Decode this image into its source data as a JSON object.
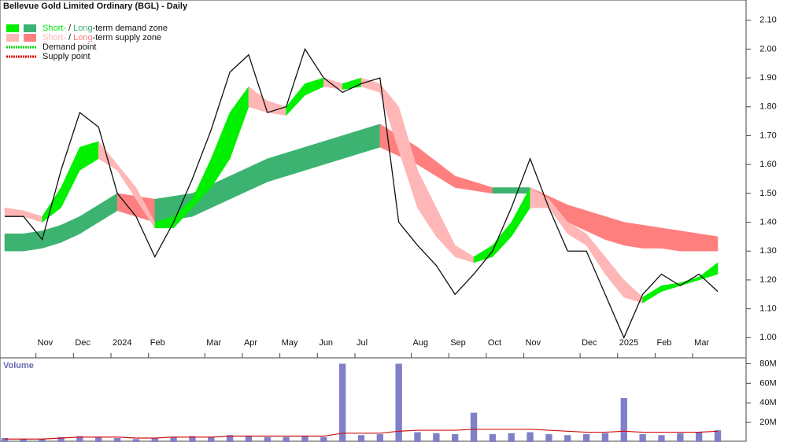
{
  "chart_data": {
    "type": "band-price",
    "title": "Bellevue Gold Limited Ordinary (BGL) - Daily",
    "legend": [
      {
        "parts": [
          "Short-",
          " / ",
          "Long",
          "-term demand zone"
        ],
        "colors": [
          "#00f000",
          "#3cb371"
        ]
      },
      {
        "parts": [
          "Short-",
          " / ",
          "Long",
          "-term supply zone"
        ],
        "colors": [
          "#ffb6b6",
          "#ff7f7f"
        ]
      },
      {
        "parts": [
          "Demand point"
        ],
        "colors": [
          "#00dd00"
        ]
      },
      {
        "parts": [
          "Supply point"
        ],
        "colors": [
          "#dd0000"
        ]
      }
    ],
    "categories": [
      null,
      null,
      "Nov",
      null,
      "Dec",
      null,
      "2024",
      null,
      "Feb",
      null,
      null,
      "Mar",
      null,
      "Apr",
      null,
      "May",
      null,
      "Jun",
      null,
      "Jul",
      null,
      null,
      "Aug",
      null,
      "Sep",
      null,
      "Oct",
      null,
      "Nov",
      null,
      null,
      "Dec",
      null,
      "2025",
      null,
      "Feb",
      null,
      "Mar",
      null
    ],
    "close": [
      1.42,
      1.42,
      1.34,
      1.58,
      1.78,
      1.73,
      1.5,
      1.42,
      1.28,
      1.4,
      1.55,
      1.72,
      1.92,
      1.98,
      1.78,
      1.8,
      2.0,
      1.9,
      1.85,
      1.88,
      1.9,
      1.4,
      1.32,
      1.25,
      1.15,
      1.22,
      1.3,
      1.45,
      1.62,
      1.45,
      1.3,
      1.3,
      1.15,
      1.0,
      1.15,
      1.22,
      1.18,
      1.22,
      1.16
    ],
    "short_zone": {
      "upper": [
        1.45,
        1.44,
        1.42,
        1.52,
        1.66,
        1.68,
        1.6,
        1.52,
        1.4,
        1.42,
        1.48,
        1.62,
        1.78,
        1.87,
        1.82,
        1.8,
        1.88,
        1.9,
        1.88,
        1.9,
        1.88,
        1.8,
        1.58,
        1.45,
        1.32,
        1.28,
        1.32,
        1.4,
        1.52,
        1.48,
        1.4,
        1.36,
        1.28,
        1.2,
        1.14,
        1.18,
        1.19,
        1.21,
        1.26
      ],
      "lower": [
        1.42,
        1.42,
        1.4,
        1.45,
        1.58,
        1.62,
        1.58,
        1.48,
        1.38,
        1.38,
        1.45,
        1.52,
        1.62,
        1.8,
        1.78,
        1.77,
        1.84,
        1.87,
        1.86,
        1.87,
        1.85,
        1.65,
        1.45,
        1.35,
        1.28,
        1.26,
        1.28,
        1.35,
        1.45,
        1.45,
        1.36,
        1.32,
        1.22,
        1.14,
        1.12,
        1.16,
        1.18,
        1.2,
        1.22
      ]
    },
    "long_zone": {
      "upper": [
        1.36,
        1.36,
        1.37,
        1.39,
        1.42,
        1.46,
        1.5,
        1.49,
        1.48,
        1.49,
        1.5,
        1.53,
        1.56,
        1.59,
        1.62,
        1.64,
        1.66,
        1.68,
        1.7,
        1.72,
        1.74,
        1.7,
        1.66,
        1.61,
        1.56,
        1.54,
        1.52,
        1.52,
        1.52,
        1.49,
        1.46,
        1.44,
        1.42,
        1.4,
        1.39,
        1.38,
        1.37,
        1.36,
        1.35
      ],
      "lower": [
        1.3,
        1.3,
        1.31,
        1.33,
        1.36,
        1.4,
        1.44,
        1.42,
        1.4,
        1.41,
        1.42,
        1.45,
        1.48,
        1.51,
        1.54,
        1.56,
        1.58,
        1.6,
        1.62,
        1.64,
        1.66,
        1.63,
        1.6,
        1.56,
        1.52,
        1.51,
        1.5,
        1.5,
        1.5,
        1.45,
        1.4,
        1.37,
        1.34,
        1.32,
        1.31,
        1.31,
        1.3,
        1.3,
        1.3
      ]
    },
    "ylim": [
      0.93,
      2.17
    ],
    "yticks": [
      {
        "value": 1.0,
        "label": "1.00"
      },
      {
        "value": 1.1,
        "label": "1.10"
      },
      {
        "value": 1.2,
        "label": "1.20"
      },
      {
        "value": 1.3,
        "label": "1.30"
      },
      {
        "value": 1.4,
        "label": "1.40"
      },
      {
        "value": 1.5,
        "label": "1.50"
      },
      {
        "value": 1.6,
        "label": "1.60"
      },
      {
        "value": 1.7,
        "label": "1.70"
      },
      {
        "value": 1.8,
        "label": "1.80"
      },
      {
        "value": 1.9,
        "label": "1.90"
      },
      {
        "value": 2.0,
        "label": "2.00"
      },
      {
        "value": 2.1,
        "label": "2.10"
      }
    ],
    "volume": {
      "title": "Volume",
      "color": "#8080c8",
      "avg_color": "#d01010",
      "values": [
        4,
        3,
        3,
        5,
        6,
        5,
        4,
        3,
        4,
        5,
        6,
        5,
        7,
        6,
        5,
        5,
        6,
        5,
        80,
        7,
        8,
        80,
        10,
        9,
        8,
        30,
        8,
        9,
        10,
        8,
        7,
        8,
        9,
        45,
        8,
        7,
        9,
        10,
        12
      ],
      "avg": [
        3,
        3,
        3,
        4,
        5,
        5,
        5,
        4,
        4,
        5,
        5,
        5,
        6,
        6,
        6,
        6,
        6,
        6,
        9,
        9,
        9,
        11,
        12,
        12,
        12,
        13,
        13,
        13,
        13,
        12,
        11,
        10,
        10,
        11,
        10,
        10,
        10,
        10,
        11
      ],
      "ylim": [
        0,
        86
      ],
      "yticks": [
        {
          "value": 20,
          "label": "20M"
        },
        {
          "value": 40,
          "label": "40M"
        },
        {
          "value": 60,
          "label": "60M"
        },
        {
          "value": 80,
          "label": "80M"
        }
      ]
    }
  }
}
